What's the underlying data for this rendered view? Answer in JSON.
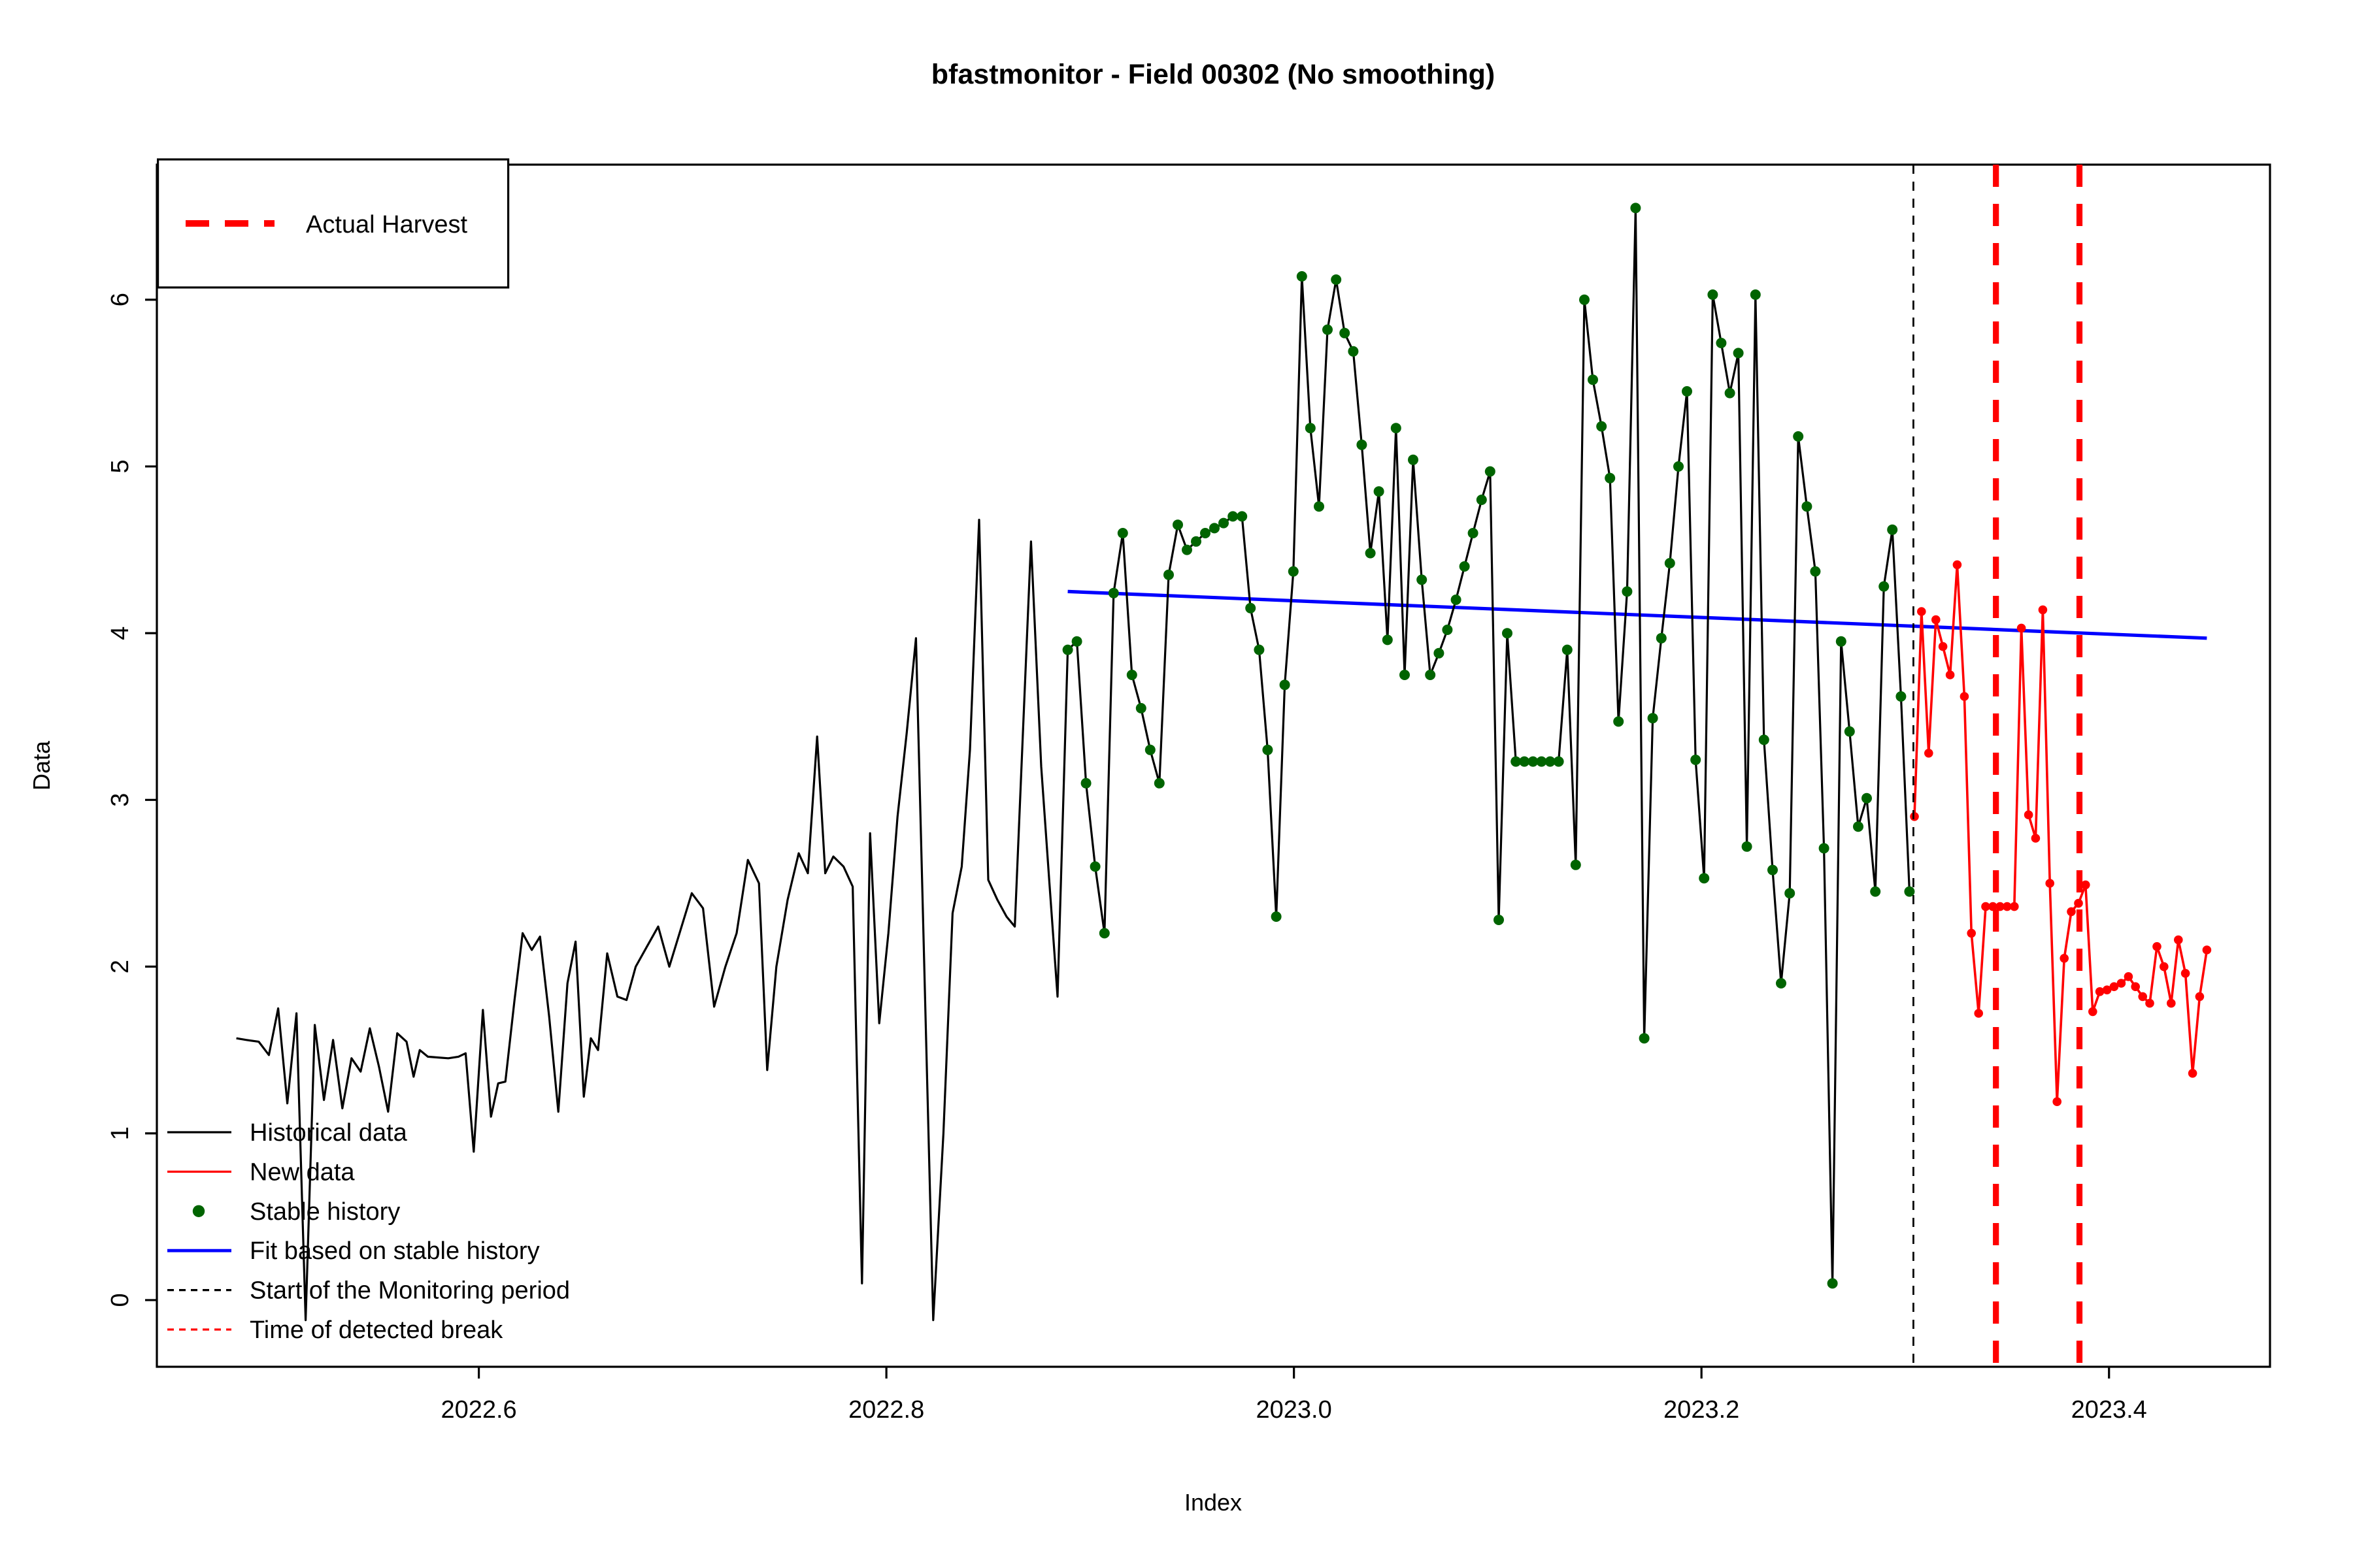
{
  "chart_data": {
    "type": "line",
    "title": "bfastmonitor - Field 00302 (No smoothing)",
    "xlabel": "Index",
    "ylabel": "Data",
    "xlim": [
      2022.442,
      2023.479
    ],
    "ylim": [
      -0.4,
      6.81
    ],
    "x_ticks": [
      2022.6,
      2022.8,
      2023.0,
      2023.2,
      2023.4
    ],
    "x_tick_labels": [
      "2022.6",
      "2022.8",
      "2023.0",
      "2023.2",
      "2023.4"
    ],
    "y_ticks": [
      0,
      1,
      2,
      3,
      4,
      5,
      6
    ],
    "y_tick_labels": [
      "0",
      "1",
      "2",
      "3",
      "4",
      "5",
      "6"
    ],
    "grid": false,
    "legend_top": {
      "label": "Actual Harvest"
    },
    "legend_bottom": [
      {
        "label": "Historical data",
        "sample": "line",
        "color": "#000000"
      },
      {
        "label": "New data",
        "sample": "line",
        "color": "#FF0000"
      },
      {
        "label": "Stable history",
        "sample": "dot",
        "color": "#006400"
      },
      {
        "label": "Fit based on stable history",
        "sample": "line",
        "color": "#0000FF"
      },
      {
        "label": "Start of the Monitoring period",
        "sample": "dashed-line",
        "color": "#000000"
      },
      {
        "label": "Time of detected break",
        "sample": "dashed-line",
        "color": "#FF0000"
      }
    ],
    "colors": {
      "historical": "#000000",
      "new_data": "#FF0000",
      "stable_history": "#006400",
      "fit": "#0000FF",
      "monitoring_start": "#000000",
      "detected_break": "#FF0000",
      "actual_harvest": "#FF0000"
    },
    "monitoring_start": 2023.304,
    "detected_break": 2023.3855,
    "harvest_lines": [
      2023.3445,
      2023.3855
    ],
    "fit_line": [
      [
        2022.889,
        4.25
      ],
      [
        2023.448,
        3.97
      ]
    ],
    "series": [
      {
        "name": "Historical data",
        "type": "line",
        "color": "#000000",
        "points": [
          [
            2022.481,
            1.57
          ],
          [
            2022.486,
            1.56
          ],
          [
            2022.492,
            1.55
          ],
          [
            2022.497,
            1.47
          ],
          [
            2022.5015,
            1.75
          ],
          [
            2022.506,
            1.18
          ],
          [
            2022.5105,
            1.72
          ],
          [
            2022.515,
            -0.12
          ],
          [
            2022.5195,
            1.65
          ],
          [
            2022.524,
            1.2
          ],
          [
            2022.5285,
            1.56
          ],
          [
            2022.533,
            1.15
          ],
          [
            2022.5375,
            1.45
          ],
          [
            2022.542,
            1.37
          ],
          [
            2022.5465,
            1.63
          ],
          [
            2022.551,
            1.4
          ],
          [
            2022.5555,
            1.13
          ],
          [
            2022.56,
            1.6
          ],
          [
            2022.5645,
            1.55
          ],
          [
            2022.568,
            1.34
          ],
          [
            2022.571,
            1.5
          ],
          [
            2022.575,
            1.46
          ],
          [
            2022.58,
            1.455
          ],
          [
            2022.585,
            1.45
          ],
          [
            2022.59,
            1.46
          ],
          [
            2022.5935,
            1.48
          ],
          [
            2022.5975,
            0.89
          ],
          [
            2022.602,
            1.74
          ],
          [
            2022.606,
            1.1
          ],
          [
            2022.6095,
            1.3
          ],
          [
            2022.613,
            1.31
          ],
          [
            2022.6175,
            1.8
          ],
          [
            2022.6215,
            2.2
          ],
          [
            2022.626,
            2.1
          ],
          [
            2022.63,
            2.18
          ],
          [
            2022.6345,
            1.7
          ],
          [
            2022.639,
            1.13
          ],
          [
            2022.6435,
            1.9
          ],
          [
            2022.6475,
            2.15
          ],
          [
            2022.6515,
            1.22
          ],
          [
            2022.655,
            1.57
          ],
          [
            2022.6585,
            1.5
          ],
          [
            2022.663,
            2.08
          ],
          [
            2022.668,
            1.82
          ],
          [
            2022.6725,
            1.8
          ],
          [
            2022.677,
            2.0
          ],
          [
            2022.6825,
            2.12
          ],
          [
            2022.688,
            2.24
          ],
          [
            2022.6935,
            2.0
          ],
          [
            2022.699,
            2.22
          ],
          [
            2022.7045,
            2.44
          ],
          [
            2022.71,
            2.35
          ],
          [
            2022.7155,
            1.76
          ],
          [
            2022.721,
            2.0
          ],
          [
            2022.7265,
            2.2
          ],
          [
            2022.732,
            2.64
          ],
          [
            2022.7375,
            2.5
          ],
          [
            2022.7415,
            1.38
          ],
          [
            2022.746,
            2.0
          ],
          [
            2022.7515,
            2.4
          ],
          [
            2022.757,
            2.68
          ],
          [
            2022.7615,
            2.56
          ],
          [
            2022.766,
            3.38
          ],
          [
            2022.77,
            2.56
          ],
          [
            2022.774,
            2.66
          ],
          [
            2022.779,
            2.6
          ],
          [
            2022.7835,
            2.48
          ],
          [
            2022.788,
            0.1
          ],
          [
            2022.792,
            2.8
          ],
          [
            2022.7965,
            1.66
          ],
          [
            2022.801,
            2.2
          ],
          [
            2022.8055,
            2.9
          ],
          [
            2022.81,
            3.4
          ],
          [
            2022.8145,
            3.97
          ],
          [
            2022.819,
            1.8
          ],
          [
            2022.823,
            -0.12
          ],
          [
            2022.828,
            1.0
          ],
          [
            2022.8325,
            2.32
          ],
          [
            2022.837,
            2.6
          ],
          [
            2022.841,
            3.3
          ],
          [
            2022.8455,
            4.68
          ],
          [
            2022.85,
            2.52
          ],
          [
            2022.8545,
            2.4
          ],
          [
            2022.859,
            2.3
          ],
          [
            2022.863,
            2.24
          ],
          [
            2022.867,
            3.4
          ],
          [
            2022.871,
            4.55
          ],
          [
            2022.876,
            3.2
          ],
          [
            2022.88,
            2.5
          ],
          [
            2022.884,
            1.82
          ]
        ]
      },
      {
        "name": "Stable history",
        "type": "line+dots",
        "color": "#006400",
        "points": [
          [
            2022.889,
            3.9
          ],
          [
            2022.8935,
            3.95
          ],
          [
            2022.898,
            3.1
          ],
          [
            2022.9025,
            2.6
          ],
          [
            2022.907,
            2.2
          ],
          [
            2022.9115,
            4.24
          ],
          [
            2022.916,
            4.6
          ],
          [
            2022.9205,
            3.75
          ],
          [
            2022.925,
            3.55
          ],
          [
            2022.9295,
            3.3
          ],
          [
            2022.934,
            3.1
          ],
          [
            2022.9385,
            4.35
          ],
          [
            2022.943,
            4.65
          ],
          [
            2022.9475,
            4.5
          ],
          [
            2022.952,
            4.55
          ],
          [
            2022.9565,
            4.6
          ],
          [
            2022.961,
            4.63
          ],
          [
            2022.9655,
            4.66
          ],
          [
            2022.97,
            4.7
          ],
          [
            2022.9745,
            4.7
          ],
          [
            2022.9787,
            4.15
          ],
          [
            2022.9829,
            3.9
          ],
          [
            2022.9871,
            3.3
          ],
          [
            2022.9913,
            2.3
          ],
          [
            2022.9955,
            3.69
          ],
          [
            2022.9997,
            4.37
          ],
          [
            2023.0039,
            6.14
          ],
          [
            2023.0081,
            5.23
          ],
          [
            2023.0123,
            4.76
          ],
          [
            2023.0165,
            5.82
          ],
          [
            2023.0207,
            6.12
          ],
          [
            2023.0249,
            5.8
          ],
          [
            2023.0291,
            5.69
          ],
          [
            2023.0333,
            5.13
          ],
          [
            2023.0375,
            4.48
          ],
          [
            2023.0417,
            4.85
          ],
          [
            2023.0459,
            3.96
          ],
          [
            2023.0501,
            5.23
          ],
          [
            2023.0543,
            3.75
          ],
          [
            2023.0585,
            5.04
          ],
          [
            2023.0627,
            4.32
          ],
          [
            2023.0669,
            3.75
          ],
          [
            2023.0711,
            3.88
          ],
          [
            2023.0753,
            4.02
          ],
          [
            2023.0795,
            4.2
          ],
          [
            2023.0837,
            4.4
          ],
          [
            2023.0879,
            4.6
          ],
          [
            2023.0921,
            4.8
          ],
          [
            2023.0963,
            4.97
          ],
          [
            2023.1005,
            2.28
          ],
          [
            2023.1047,
            4.0
          ],
          [
            2023.1089,
            3.23
          ],
          [
            2023.1131,
            3.23
          ],
          [
            2023.1173,
            3.23
          ],
          [
            2023.1215,
            3.23
          ],
          [
            2023.1257,
            3.23
          ],
          [
            2023.1299,
            3.23
          ],
          [
            2023.1341,
            3.9
          ],
          [
            2023.1383,
            2.61
          ],
          [
            2023.1425,
            6.0
          ],
          [
            2023.1467,
            5.52
          ],
          [
            2023.1509,
            5.24
          ],
          [
            2023.1551,
            4.93
          ],
          [
            2023.1593,
            3.47
          ],
          [
            2023.1635,
            4.25
          ],
          [
            2023.1677,
            6.55
          ],
          [
            2023.1719,
            1.57
          ],
          [
            2023.1761,
            3.49
          ],
          [
            2023.1803,
            3.97
          ],
          [
            2023.1845,
            4.42
          ],
          [
            2023.1887,
            5.0
          ],
          [
            2023.1929,
            5.45
          ],
          [
            2023.1971,
            3.24
          ],
          [
            2023.2013,
            2.53
          ],
          [
            2023.2055,
            6.03
          ],
          [
            2023.2097,
            5.74
          ],
          [
            2023.2139,
            5.44
          ],
          [
            2023.2181,
            5.68
          ],
          [
            2023.2223,
            2.72
          ],
          [
            2023.2265,
            6.03
          ],
          [
            2023.2307,
            3.36
          ],
          [
            2023.2349,
            2.58
          ],
          [
            2023.2391,
            1.9
          ],
          [
            2023.2433,
            2.44
          ],
          [
            2023.2475,
            5.18
          ],
          [
            2023.2517,
            4.76
          ],
          [
            2023.2559,
            4.37
          ],
          [
            2023.2601,
            2.71
          ],
          [
            2023.2643,
            0.1
          ],
          [
            2023.2685,
            3.95
          ],
          [
            2023.2727,
            3.41
          ],
          [
            2023.2769,
            2.84
          ],
          [
            2023.2811,
            3.01
          ],
          [
            2023.2853,
            2.45
          ],
          [
            2023.2895,
            4.28
          ],
          [
            2023.2937,
            4.62
          ],
          [
            2023.2979,
            3.62
          ],
          [
            2023.3021,
            2.45
          ]
        ]
      },
      {
        "name": "New data",
        "type": "line+dots",
        "color": "#FF0000",
        "points": [
          [
            2023.3045,
            2.9
          ],
          [
            2023.308,
            4.13
          ],
          [
            2023.3115,
            3.28
          ],
          [
            2023.315,
            4.08
          ],
          [
            2023.3185,
            3.92
          ],
          [
            2023.322,
            3.75
          ],
          [
            2023.3255,
            4.41
          ],
          [
            2023.329,
            3.62
          ],
          [
            2023.3325,
            2.2
          ],
          [
            2023.336,
            1.72
          ],
          [
            2023.3395,
            2.36
          ],
          [
            2023.343,
            2.36
          ],
          [
            2023.3465,
            2.36
          ],
          [
            2023.35,
            2.36
          ],
          [
            2023.3535,
            2.36
          ],
          [
            2023.357,
            4.03
          ],
          [
            2023.3605,
            2.91
          ],
          [
            2023.364,
            2.77
          ],
          [
            2023.3675,
            4.14
          ],
          [
            2023.371,
            2.5
          ],
          [
            2023.3745,
            1.19
          ],
          [
            2023.378,
            2.05
          ],
          [
            2023.3815,
            2.33
          ],
          [
            2023.385,
            2.38
          ],
          [
            2023.3885,
            2.49
          ],
          [
            2023.392,
            1.73
          ],
          [
            2023.3955,
            1.85
          ],
          [
            2023.399,
            1.86
          ],
          [
            2023.4025,
            1.88
          ],
          [
            2023.406,
            1.9
          ],
          [
            2023.4095,
            1.94
          ],
          [
            2023.413,
            1.88
          ],
          [
            2023.4165,
            1.82
          ],
          [
            2023.42,
            1.78
          ],
          [
            2023.4235,
            2.12
          ],
          [
            2023.427,
            2.0
          ],
          [
            2023.4305,
            1.78
          ],
          [
            2023.434,
            2.16
          ],
          [
            2023.4375,
            1.96
          ],
          [
            2023.441,
            1.36
          ],
          [
            2023.4445,
            1.82
          ],
          [
            2023.448,
            2.1
          ]
        ]
      }
    ]
  }
}
